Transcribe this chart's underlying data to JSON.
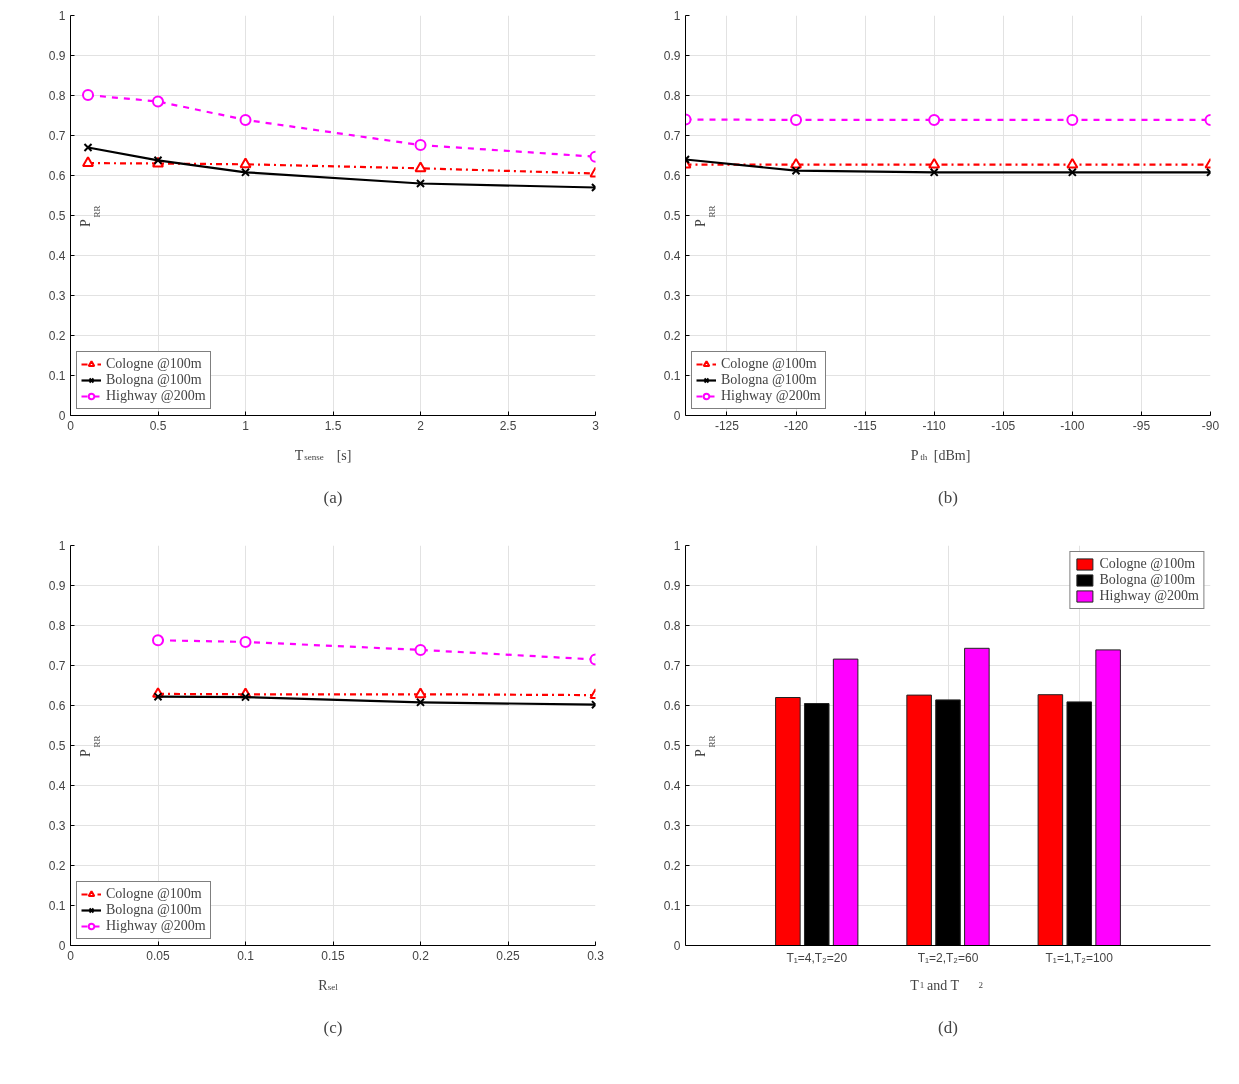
{
  "chart_data": [
    {
      "type": "line",
      "xlabel": "T$_{sense}$ [s]",
      "ylabel": "P$_{RR}$",
      "annotations": [
        "(a)"
      ],
      "x": [
        0.1,
        0.5,
        1,
        2,
        3
      ],
      "xlim": [
        0,
        3
      ],
      "xticks": [
        0,
        0.5,
        1,
        1.5,
        2,
        2.5,
        3
      ],
      "ylim": [
        0,
        1
      ],
      "yticks": [
        0,
        0.1,
        0.2,
        0.3,
        0.4,
        0.5,
        0.6,
        0.7,
        0.8,
        0.9,
        1
      ],
      "grid": true,
      "legend": "bottom left",
      "series": [
        {
          "name": "Cologne @100m",
          "color": "#ff0000",
          "marker": "triangle",
          "line_style": "dashdot",
          "values": [
            0.631,
            0.63,
            0.628,
            0.618,
            0.605
          ]
        },
        {
          "name": "Bologna @100m",
          "color": "#000000",
          "marker": "cross",
          "line_style": "solid",
          "values": [
            0.67,
            0.638,
            0.608,
            0.58,
            0.57
          ]
        },
        {
          "name": "Highway @200m",
          "color": "#ff00ff",
          "marker": "circle",
          "line_style": "dashed",
          "values": [
            0.801,
            0.785,
            0.739,
            0.676,
            0.647
          ]
        }
      ]
    },
    {
      "type": "line",
      "xlabel": "P$_{th}$ [dBm]",
      "ylabel": "P$_{RR}$",
      "annotations": [
        "(b)"
      ],
      "x": [
        -128,
        -120,
        -110,
        -100,
        -90
      ],
      "xlim": [
        -128,
        -90
      ],
      "xticks": [
        -125,
        -120,
        -115,
        -110,
        -105,
        -100,
        -95,
        -90
      ],
      "ylim": [
        0,
        1
      ],
      "yticks": [
        0,
        0.1,
        0.2,
        0.3,
        0.4,
        0.5,
        0.6,
        0.7,
        0.8,
        0.9,
        1
      ],
      "grid": true,
      "legend": "bottom left",
      "series": [
        {
          "name": "Cologne @100m",
          "color": "#ff0000",
          "marker": "triangle",
          "line_style": "dashdot",
          "values": [
            0.627,
            0.627,
            0.627,
            0.627,
            0.627
          ]
        },
        {
          "name": "Bologna @100m",
          "color": "#000000",
          "marker": "cross",
          "line_style": "solid",
          "values": [
            0.64,
            0.612,
            0.608,
            0.608,
            0.608
          ]
        },
        {
          "name": "Highway @200m",
          "color": "#ff00ff",
          "marker": "circle",
          "line_style": "dashed",
          "values": [
            0.74,
            0.739,
            0.739,
            0.739,
            0.739
          ]
        }
      ]
    },
    {
      "type": "line",
      "xlabel": "R$_{sel}$",
      "ylabel": "P$_{RR}$",
      "annotations": [
        "(c)"
      ],
      "x": [
        0.05,
        0.1,
        0.2,
        0.3
      ],
      "xlim": [
        0,
        0.3
      ],
      "xticks": [
        0,
        0.05,
        0.1,
        0.15,
        0.2,
        0.25,
        0.3
      ],
      "ylim": [
        0,
        1
      ],
      "yticks": [
        0,
        0.1,
        0.2,
        0.3,
        0.4,
        0.5,
        0.6,
        0.7,
        0.8,
        0.9,
        1
      ],
      "grid": true,
      "legend": "bottom left",
      "series": [
        {
          "name": "Cologne @100m",
          "color": "#ff0000",
          "marker": "triangle",
          "line_style": "dashdot",
          "values": [
            0.629,
            0.628,
            0.628,
            0.626
          ]
        },
        {
          "name": "Bologna @100m",
          "color": "#000000",
          "marker": "cross",
          "line_style": "solid",
          "values": [
            0.622,
            0.621,
            0.608,
            0.602
          ]
        },
        {
          "name": "Highway @200m",
          "color": "#ff00ff",
          "marker": "circle",
          "line_style": "dashed",
          "values": [
            0.763,
            0.759,
            0.739,
            0.715
          ]
        }
      ]
    },
    {
      "type": "bar",
      "xlabel": "T$_{1}$ and T$_{2}$",
      "ylabel": "P$_{RR}$",
      "annotations": [
        "(d)"
      ],
      "categories": [
        "T₁=4,T₂=20",
        "T₁=2,T₂=60",
        "T₁=1,T₂=100"
      ],
      "ylim": [
        0,
        1
      ],
      "yticks": [
        0,
        0.1,
        0.2,
        0.3,
        0.4,
        0.5,
        0.6,
        0.7,
        0.8,
        0.9,
        1
      ],
      "grid": true,
      "legend": "top right",
      "series": [
        {
          "name": "Cologne @100m",
          "color": "#ff0000",
          "values": [
            0.62,
            0.626,
            0.627
          ]
        },
        {
          "name": "Bologna @100m",
          "color": "#000000",
          "values": [
            0.605,
            0.614,
            0.609
          ]
        },
        {
          "name": "Highway @200m",
          "color": "#ff00ff",
          "values": [
            0.716,
            0.743,
            0.739
          ]
        }
      ]
    }
  ]
}
